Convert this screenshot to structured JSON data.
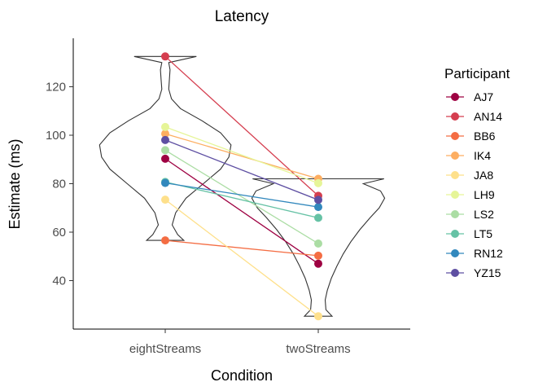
{
  "chart_data": {
    "type": "violin-dot-line",
    "title": "Latency",
    "xlabel": "Condition",
    "ylabel": "Estimate (ms)",
    "categories": [
      "eightStreams",
      "twoStreams"
    ],
    "ylim": [
      20,
      140
    ],
    "yticks": [
      40,
      60,
      80,
      100,
      120
    ],
    "grid": false,
    "legend": {
      "title": "Participant",
      "position": "right"
    },
    "series": [
      {
        "name": "AJ7",
        "color": "#9e0142",
        "values": [
          90.3,
          47.0
        ]
      },
      {
        "name": "AN14",
        "color": "#d53e4f",
        "values": [
          132.5,
          75.0
        ]
      },
      {
        "name": "BB6",
        "color": "#f46d43",
        "values": [
          56.6,
          50.3
        ]
      },
      {
        "name": "IK4",
        "color": "#fdae61",
        "values": [
          100.6,
          82.0
        ]
      },
      {
        "name": "JA8",
        "color": "#fee08b",
        "values": [
          73.4,
          25.3
        ]
      },
      {
        "name": "LH9",
        "color": "#e6f598",
        "values": [
          103.4,
          80.2
        ]
      },
      {
        "name": "LS2",
        "color": "#abdda4",
        "values": [
          93.8,
          55.3
        ]
      },
      {
        "name": "LT5",
        "color": "#66c2a5",
        "values": [
          80.7,
          65.9
        ]
      },
      {
        "name": "RN12",
        "color": "#3288bd",
        "values": [
          80.3,
          70.4
        ]
      },
      {
        "name": "YZ15",
        "color": "#5e4fa2",
        "values": [
          98.0,
          73.3
        ]
      }
    ],
    "violins": [
      {
        "category": "eightStreams",
        "min": 56.6,
        "max": 132.5,
        "profile": [
          [
            56.6,
            0.27
          ],
          [
            59,
            0.18
          ],
          [
            63,
            0.1
          ],
          [
            68,
            0.15
          ],
          [
            74,
            0.3
          ],
          [
            80,
            0.55
          ],
          [
            86,
            0.8
          ],
          [
            91,
            0.92
          ],
          [
            96,
            0.95
          ],
          [
            101,
            0.8
          ],
          [
            106,
            0.53
          ],
          [
            111,
            0.22
          ],
          [
            115,
            0.09
          ],
          [
            119,
            0.05
          ],
          [
            123,
            0.06
          ],
          [
            127,
            0.07
          ],
          [
            130,
            0.05
          ],
          [
            132.5,
            0.45
          ]
        ]
      },
      {
        "category": "twoStreams",
        "min": 25.3,
        "max": 82.0,
        "profile": [
          [
            25.3,
            0.2
          ],
          [
            28,
            0.11
          ],
          [
            32,
            0.1
          ],
          [
            36,
            0.13
          ],
          [
            41,
            0.19
          ],
          [
            46,
            0.27
          ],
          [
            51,
            0.36
          ],
          [
            56,
            0.47
          ],
          [
            61,
            0.6
          ],
          [
            66,
            0.75
          ],
          [
            70,
            0.88
          ],
          [
            74,
            0.96
          ],
          [
            77,
            0.9
          ],
          [
            80,
            0.65
          ],
          [
            82.0,
            0.95
          ]
        ]
      }
    ]
  }
}
